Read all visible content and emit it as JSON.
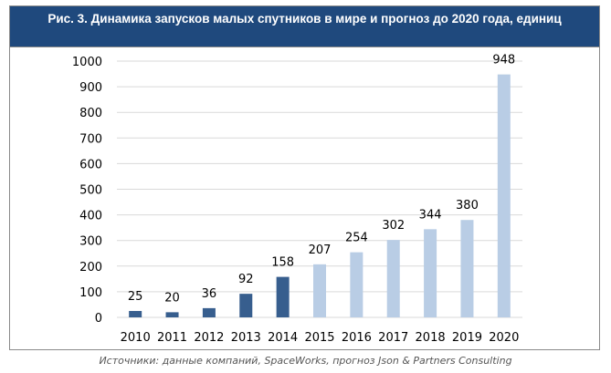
{
  "chart_data": {
    "type": "bar",
    "title": "Рис. 3. Динамика запусков малых спутников в мире и прогноз до 2020 года, единиц",
    "categories": [
      "2010",
      "2011",
      "2012",
      "2013",
      "2014",
      "2015",
      "2016",
      "2017",
      "2018",
      "2019",
      "2020"
    ],
    "values": [
      25,
      20,
      36,
      92,
      158,
      207,
      254,
      302,
      344,
      380,
      948
    ],
    "data_labels": [
      "25",
      "20",
      "36",
      "92",
      "158",
      "207",
      "254",
      "302",
      "344",
      "380",
      "948"
    ],
    "series_colors": [
      "#375e8e",
      "#375e8e",
      "#375e8e",
      "#375e8e",
      "#375e8e",
      "#b9cde5",
      "#b9cde5",
      "#b9cde5",
      "#b9cde5",
      "#b9cde5",
      "#b9cde5"
    ],
    "yticks": [
      "0",
      "100",
      "200",
      "300",
      "400",
      "500",
      "600",
      "700",
      "800",
      "900",
      "1000"
    ],
    "ylim": [
      0,
      1000
    ],
    "grid": true,
    "xlabel": "",
    "ylabel": ""
  },
  "source": "Источники: данные компаний, SpaceWorks, прогноз Json & Partners Consulting"
}
